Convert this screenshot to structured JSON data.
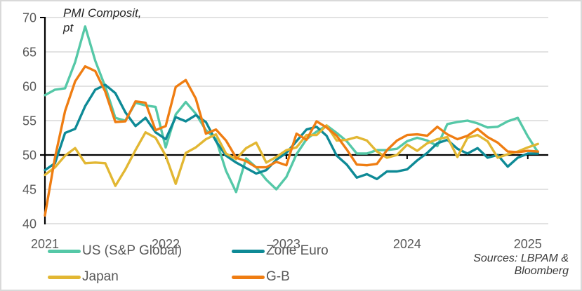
{
  "chart": {
    "title_line1": "PMI Composit,",
    "title_line2": "pt"
  },
  "legend": [
    {
      "id": "us",
      "label": "US (S&P Global)",
      "color": "#55C8A7"
    },
    {
      "id": "zone-euro",
      "label": "Zone Euro",
      "color": "#0E8A96"
    },
    {
      "id": "japan",
      "label": "Japan",
      "color": "#E2B733"
    },
    {
      "id": "gb",
      "label": "G-B",
      "color": "#EF7D12"
    }
  ],
  "sources": {
    "line1": "Sources: LBPAM &",
    "line2": "Bloomberg"
  },
  "chart_data": {
    "type": "line",
    "title": "PMI Composit, pt",
    "x_monthly_start": "2021-01",
    "x_monthly_end": "2025-02",
    "xaxis": {
      "year_labels": [
        "2021",
        "2022",
        "2023",
        "2024",
        "2025"
      ],
      "year_month_index": [
        0,
        12,
        24,
        36,
        48
      ]
    },
    "yaxis": {
      "ticks": [
        40,
        45,
        50,
        55,
        60,
        65,
        70
      ],
      "tick_labels": [
        "40",
        "45",
        "50",
        "55",
        "60",
        "65",
        "70"
      ],
      "range": [
        40,
        70
      ],
      "baseline": 50,
      "grid": true
    },
    "legend_position": "bottom",
    "style": {
      "gridline_color": "#d9d9d9",
      "axis_color": "#000000",
      "label_color": "#595959",
      "line_width": 3.4
    },
    "series": [
      {
        "id": "us",
        "name": "US (S&P Global)",
        "color": "#55C8A7",
        "values": [
          58.7,
          59.5,
          59.7,
          63.5,
          68.7,
          63.7,
          59.9,
          55.4,
          55.0,
          57.6,
          57.2,
          57.0,
          51.1,
          55.9,
          57.7,
          56.0,
          53.6,
          52.3,
          47.7,
          44.6,
          49.5,
          48.2,
          46.4,
          45.0,
          46.8,
          50.1,
          52.3,
          53.4,
          54.3,
          53.2,
          52.0,
          50.2,
          50.2,
          50.7,
          50.7,
          50.9,
          52.0,
          52.5,
          52.1,
          51.3,
          54.5,
          54.8,
          55.0,
          54.6,
          54.0,
          54.1,
          54.9,
          55.4,
          52.7,
          50.4
        ]
      },
      {
        "id": "zone-euro",
        "name": "Zone Euro",
        "color": "#0E8A96",
        "values": [
          47.8,
          48.8,
          53.2,
          53.8,
          57.1,
          59.5,
          60.2,
          59.0,
          56.2,
          54.2,
          55.4,
          53.3,
          52.3,
          55.5,
          54.9,
          55.8,
          54.8,
          52.0,
          49.9,
          48.9,
          48.1,
          47.3,
          47.8,
          49.3,
          50.3,
          52.0,
          53.7,
          54.1,
          52.8,
          49.9,
          48.6,
          46.7,
          47.2,
          46.5,
          47.6,
          47.6,
          47.9,
          49.2,
          50.3,
          51.7,
          52.2,
          50.9,
          50.2,
          51.0,
          49.6,
          50.0,
          48.3,
          49.6,
          50.2,
          50.2
        ]
      },
      {
        "id": "japan",
        "name": "Japan",
        "color": "#E2B733",
        "values": [
          47.1,
          48.2,
          49.9,
          51.0,
          48.8,
          48.9,
          48.8,
          45.5,
          47.9,
          50.7,
          53.3,
          52.5,
          49.9,
          45.8,
          50.3,
          51.1,
          52.3,
          53.0,
          50.2,
          49.4,
          51.0,
          51.8,
          48.9,
          49.7,
          50.7,
          51.1,
          52.9,
          52.9,
          54.3,
          52.1,
          52.2,
          52.6,
          52.1,
          50.5,
          49.6,
          50.0,
          51.5,
          50.6,
          51.7,
          52.3,
          52.6,
          49.7,
          52.5,
          52.9,
          52.0,
          49.6,
          50.1,
          50.5,
          51.1,
          51.6
        ]
      },
      {
        "id": "gb",
        "name": "G-B",
        "color": "#EF7D12",
        "values": [
          41.2,
          49.6,
          56.4,
          60.7,
          62.9,
          62.2,
          59.2,
          54.8,
          54.9,
          57.8,
          57.6,
          53.6,
          54.2,
          59.9,
          60.9,
          58.2,
          53.1,
          53.7,
          52.1,
          49.6,
          49.1,
          48.2,
          48.2,
          49.0,
          48.5,
          53.1,
          52.2,
          54.9,
          54.0,
          52.8,
          50.8,
          48.6,
          48.5,
          48.7,
          50.7,
          52.1,
          52.9,
          53.0,
          52.8,
          54.1,
          53.0,
          52.3,
          52.8,
          53.8,
          52.6,
          51.8,
          50.5,
          50.4,
          50.6,
          50.5
        ]
      }
    ]
  }
}
